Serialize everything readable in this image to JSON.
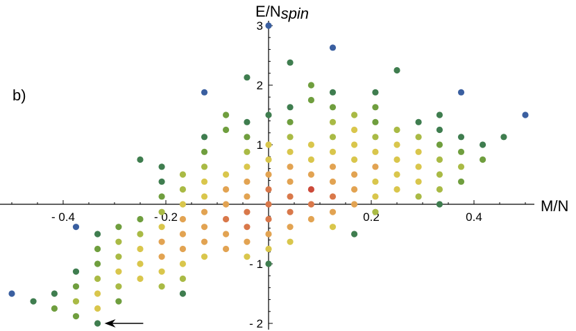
{
  "chart_data": {
    "type": "scatter",
    "panel_label": "b)",
    "xlabel": "M/N",
    "ylabel_main": "E/N",
    "ylabel_sub": "spin",
    "x_ticks": [
      {
        "value": -0.4,
        "label": "- 0.4"
      },
      {
        "value": -0.2,
        "label": "- 0.2"
      },
      {
        "value": 0.2,
        "label": "0.2"
      },
      {
        "value": 0.4,
        "label": "0.4"
      }
    ],
    "y_ticks": [
      {
        "value": -2,
        "label": "- 2"
      },
      {
        "value": -1,
        "label": "- 1"
      },
      {
        "value": 1,
        "label": "1"
      },
      {
        "value": 2,
        "label": "2"
      },
      {
        "value": 3,
        "label": "3"
      }
    ],
    "xlim": [
      -0.52,
      0.52
    ],
    "ylim": [
      -2.1,
      3.1
    ],
    "color_scale": [
      "#3a5fa0",
      "#3f7d4f",
      "#6f9e3e",
      "#a9ba45",
      "#d9c64c",
      "#e2a352",
      "#d9784a",
      "#cc4a3a"
    ],
    "points": [
      {
        "x": -0.5,
        "y": -1.5,
        "c": 0
      },
      {
        "x": -0.458,
        "y": -1.63,
        "c": 1
      },
      {
        "x": -0.417,
        "y": -1.5,
        "c": 1
      },
      {
        "x": -0.417,
        "y": -1.75,
        "c": 2
      },
      {
        "x": -0.375,
        "y": -0.38,
        "c": 0
      },
      {
        "x": -0.375,
        "y": -1.13,
        "c": 1
      },
      {
        "x": -0.375,
        "y": -1.38,
        "c": 2
      },
      {
        "x": -0.375,
        "y": -1.63,
        "c": 3
      },
      {
        "x": -0.375,
        "y": -1.88,
        "c": 2
      },
      {
        "x": -0.333,
        "y": -0.5,
        "c": 1
      },
      {
        "x": -0.333,
        "y": -0.75,
        "c": 2
      },
      {
        "x": -0.333,
        "y": -1.0,
        "c": 2
      },
      {
        "x": -0.333,
        "y": -1.25,
        "c": 3
      },
      {
        "x": -0.333,
        "y": -1.5,
        "c": 4
      },
      {
        "x": -0.333,
        "y": -1.75,
        "c": 4
      },
      {
        "x": -0.333,
        "y": -2.0,
        "c": 1
      },
      {
        "x": -0.292,
        "y": -0.38,
        "c": 2
      },
      {
        "x": -0.292,
        "y": -0.63,
        "c": 3
      },
      {
        "x": -0.292,
        "y": -0.88,
        "c": 3
      },
      {
        "x": -0.292,
        "y": -1.13,
        "c": 4
      },
      {
        "x": -0.292,
        "y": -1.38,
        "c": 3
      },
      {
        "x": -0.292,
        "y": -1.63,
        "c": 2
      },
      {
        "x": -0.25,
        "y": 0.75,
        "c": 1
      },
      {
        "x": -0.25,
        "y": -0.25,
        "c": 2
      },
      {
        "x": -0.25,
        "y": -0.5,
        "c": 3
      },
      {
        "x": -0.25,
        "y": -0.75,
        "c": 4
      },
      {
        "x": -0.25,
        "y": -1.0,
        "c": 4
      },
      {
        "x": -0.25,
        "y": -1.25,
        "c": 4
      },
      {
        "x": -0.208,
        "y": 0.63,
        "c": 1
      },
      {
        "x": -0.208,
        "y": 0.38,
        "c": 1
      },
      {
        "x": -0.208,
        "y": 0.13,
        "c": 2
      },
      {
        "x": -0.208,
        "y": -0.13,
        "c": 3
      },
      {
        "x": -0.208,
        "y": -0.38,
        "c": 4
      },
      {
        "x": -0.208,
        "y": -0.63,
        "c": 5
      },
      {
        "x": -0.208,
        "y": -0.88,
        "c": 5
      },
      {
        "x": -0.208,
        "y": -1.13,
        "c": 4
      },
      {
        "x": -0.208,
        "y": -1.38,
        "c": 3
      },
      {
        "x": -0.167,
        "y": 0.5,
        "c": 3
      },
      {
        "x": -0.167,
        "y": 0.25,
        "c": 3
      },
      {
        "x": -0.167,
        "y": 0.0,
        "c": 4
      },
      {
        "x": -0.167,
        "y": -0.25,
        "c": 5
      },
      {
        "x": -0.167,
        "y": -0.5,
        "c": 5
      },
      {
        "x": -0.167,
        "y": -0.75,
        "c": 5
      },
      {
        "x": -0.167,
        "y": -1.0,
        "c": 4
      },
      {
        "x": -0.167,
        "y": -1.25,
        "c": 3
      },
      {
        "x": -0.167,
        "y": -1.5,
        "c": 1
      },
      {
        "x": -0.125,
        "y": 1.88,
        "c": 0
      },
      {
        "x": -0.125,
        "y": 1.13,
        "c": 1
      },
      {
        "x": -0.125,
        "y": 0.88,
        "c": 2
      },
      {
        "x": -0.125,
        "y": 0.63,
        "c": 3
      },
      {
        "x": -0.125,
        "y": 0.38,
        "c": 4
      },
      {
        "x": -0.125,
        "y": 0.13,
        "c": 4
      },
      {
        "x": -0.125,
        "y": -0.13,
        "c": 5
      },
      {
        "x": -0.125,
        "y": -0.38,
        "c": 5
      },
      {
        "x": -0.125,
        "y": -0.63,
        "c": 5
      },
      {
        "x": -0.125,
        "y": -0.88,
        "c": 4
      },
      {
        "x": -0.083,
        "y": 1.5,
        "c": 2
      },
      {
        "x": -0.083,
        "y": 1.25,
        "c": 2
      },
      {
        "x": -0.083,
        "y": 0.5,
        "c": 4
      },
      {
        "x": -0.083,
        "y": 0.25,
        "c": 5
      },
      {
        "x": -0.083,
        "y": 0.0,
        "c": 5
      },
      {
        "x": -0.083,
        "y": -0.25,
        "c": 6
      },
      {
        "x": -0.083,
        "y": -0.5,
        "c": 5
      },
      {
        "x": -0.083,
        "y": -0.75,
        "c": 5
      },
      {
        "x": -0.042,
        "y": 2.13,
        "c": 1
      },
      {
        "x": -0.042,
        "y": 1.38,
        "c": 1
      },
      {
        "x": -0.042,
        "y": 1.13,
        "c": 2
      },
      {
        "x": -0.042,
        "y": 0.88,
        "c": 3
      },
      {
        "x": -0.042,
        "y": 0.63,
        "c": 4
      },
      {
        "x": -0.042,
        "y": 0.38,
        "c": 5
      },
      {
        "x": -0.042,
        "y": 0.13,
        "c": 5
      },
      {
        "x": -0.042,
        "y": -0.13,
        "c": 6
      },
      {
        "x": -0.042,
        "y": -0.38,
        "c": 6
      },
      {
        "x": -0.042,
        "y": -0.63,
        "c": 5
      },
      {
        "x": -0.042,
        "y": -0.88,
        "c": 4
      },
      {
        "x": 0.0,
        "y": 3.0,
        "c": 0
      },
      {
        "x": 0.0,
        "y": 1.5,
        "c": 1
      },
      {
        "x": 0.0,
        "y": 1.0,
        "c": 4
      },
      {
        "x": 0.0,
        "y": 0.75,
        "c": 4
      },
      {
        "x": 0.0,
        "y": 0.5,
        "c": 5
      },
      {
        "x": 0.0,
        "y": 0.25,
        "c": 6
      },
      {
        "x": 0.0,
        "y": 0.0,
        "c": 6
      },
      {
        "x": 0.0,
        "y": -0.25,
        "c": 6
      },
      {
        "x": 0.0,
        "y": -0.5,
        "c": 5
      },
      {
        "x": 0.0,
        "y": -0.75,
        "c": 4
      },
      {
        "x": 0.0,
        "y": -1.0,
        "c": 1
      },
      {
        "x": 0.042,
        "y": 2.38,
        "c": 1
      },
      {
        "x": 0.042,
        "y": 1.63,
        "c": 1
      },
      {
        "x": 0.042,
        "y": 1.38,
        "c": 2
      },
      {
        "x": 0.042,
        "y": 1.13,
        "c": 3
      },
      {
        "x": 0.042,
        "y": 0.88,
        "c": 4
      },
      {
        "x": 0.042,
        "y": 0.63,
        "c": 5
      },
      {
        "x": 0.042,
        "y": 0.38,
        "c": 5
      },
      {
        "x": 0.042,
        "y": 0.13,
        "c": 6
      },
      {
        "x": 0.042,
        "y": -0.13,
        "c": 6
      },
      {
        "x": 0.042,
        "y": -0.38,
        "c": 5
      },
      {
        "x": 0.042,
        "y": -0.63,
        "c": 4
      },
      {
        "x": 0.083,
        "y": 2.0,
        "c": 2
      },
      {
        "x": 0.083,
        "y": 1.75,
        "c": 2
      },
      {
        "x": 0.083,
        "y": 1.0,
        "c": 4
      },
      {
        "x": 0.083,
        "y": 0.75,
        "c": 4
      },
      {
        "x": 0.083,
        "y": 0.5,
        "c": 5
      },
      {
        "x": 0.083,
        "y": 0.25,
        "c": 7
      },
      {
        "x": 0.083,
        "y": 0.0,
        "c": 6
      },
      {
        "x": 0.083,
        "y": -0.25,
        "c": 5
      },
      {
        "x": 0.125,
        "y": 2.63,
        "c": 0
      },
      {
        "x": 0.125,
        "y": 1.88,
        "c": 1
      },
      {
        "x": 0.125,
        "y": 1.63,
        "c": 2
      },
      {
        "x": 0.125,
        "y": 1.38,
        "c": 3
      },
      {
        "x": 0.125,
        "y": 1.13,
        "c": 3
      },
      {
        "x": 0.125,
        "y": 0.88,
        "c": 4
      },
      {
        "x": 0.125,
        "y": 0.63,
        "c": 5
      },
      {
        "x": 0.125,
        "y": 0.38,
        "c": 5
      },
      {
        "x": 0.125,
        "y": 0.13,
        "c": 6
      },
      {
        "x": 0.125,
        "y": -0.13,
        "c": 5
      },
      {
        "x": 0.125,
        "y": -0.38,
        "c": 4
      },
      {
        "x": 0.167,
        "y": 1.5,
        "c": 3
      },
      {
        "x": 0.167,
        "y": 1.25,
        "c": 4
      },
      {
        "x": 0.167,
        "y": 1.0,
        "c": 4
      },
      {
        "x": 0.167,
        "y": 0.75,
        "c": 4
      },
      {
        "x": 0.167,
        "y": 0.5,
        "c": 5
      },
      {
        "x": 0.167,
        "y": 0.25,
        "c": 5
      },
      {
        "x": 0.167,
        "y": 0.0,
        "c": 5
      },
      {
        "x": 0.167,
        "y": -0.5,
        "c": 1
      },
      {
        "x": 0.208,
        "y": 1.88,
        "c": 1
      },
      {
        "x": 0.208,
        "y": 1.63,
        "c": 2
      },
      {
        "x": 0.208,
        "y": 1.38,
        "c": 2
      },
      {
        "x": 0.208,
        "y": 1.13,
        "c": 3
      },
      {
        "x": 0.208,
        "y": 0.88,
        "c": 4
      },
      {
        "x": 0.208,
        "y": 0.63,
        "c": 5
      },
      {
        "x": 0.208,
        "y": 0.38,
        "c": 4
      },
      {
        "x": 0.208,
        "y": 0.13,
        "c": 4
      },
      {
        "x": 0.208,
        "y": -0.13,
        "c": 3
      },
      {
        "x": 0.25,
        "y": 2.25,
        "c": 1
      },
      {
        "x": 0.25,
        "y": 1.25,
        "c": 3
      },
      {
        "x": 0.25,
        "y": 1.0,
        "c": 4
      },
      {
        "x": 0.25,
        "y": 0.75,
        "c": 4
      },
      {
        "x": 0.25,
        "y": 0.5,
        "c": 4
      },
      {
        "x": 0.25,
        "y": 0.25,
        "c": 4
      },
      {
        "x": 0.292,
        "y": 1.38,
        "c": 1
      },
      {
        "x": 0.292,
        "y": 1.13,
        "c": 3
      },
      {
        "x": 0.292,
        "y": 0.88,
        "c": 4
      },
      {
        "x": 0.292,
        "y": 0.63,
        "c": 4
      },
      {
        "x": 0.292,
        "y": 0.38,
        "c": 4
      },
      {
        "x": 0.292,
        "y": 0.13,
        "c": 3
      },
      {
        "x": 0.333,
        "y": 1.5,
        "c": 1
      },
      {
        "x": 0.333,
        "y": 1.25,
        "c": 1
      },
      {
        "x": 0.333,
        "y": 1.0,
        "c": 2
      },
      {
        "x": 0.333,
        "y": 0.75,
        "c": 3
      },
      {
        "x": 0.333,
        "y": 0.5,
        "c": 3
      },
      {
        "x": 0.333,
        "y": 0.25,
        "c": 3
      },
      {
        "x": 0.333,
        "y": 0.0,
        "c": 1
      },
      {
        "x": 0.375,
        "y": 1.88,
        "c": 0
      },
      {
        "x": 0.375,
        "y": 1.13,
        "c": 1
      },
      {
        "x": 0.375,
        "y": 0.88,
        "c": 2
      },
      {
        "x": 0.375,
        "y": 0.63,
        "c": 3
      },
      {
        "x": 0.375,
        "y": 0.38,
        "c": 2
      },
      {
        "x": 0.417,
        "y": 1.0,
        "c": 1
      },
      {
        "x": 0.417,
        "y": 0.75,
        "c": 2
      },
      {
        "x": 0.458,
        "y": 1.13,
        "c": 1
      },
      {
        "x": 0.5,
        "y": 1.5,
        "c": 0
      }
    ],
    "arrow": {
      "x_from": -0.29,
      "x_to": -0.333,
      "y": -2.0
    }
  }
}
